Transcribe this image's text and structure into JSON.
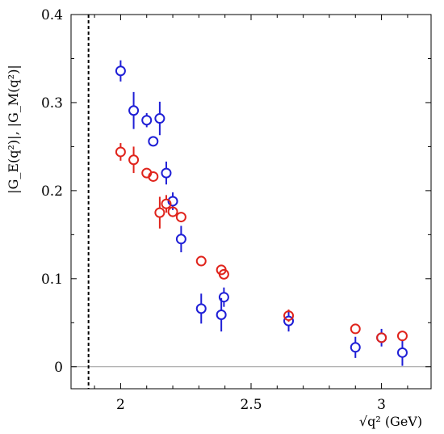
{
  "chart_data": {
    "type": "scatter",
    "title": "",
    "xlabel": "√q² (GeV)",
    "ylabel": "|G_E(q²)|, |G_M(q²)|",
    "xlim": [
      1.81,
      3.19
    ],
    "ylim": [
      -0.025,
      0.4
    ],
    "x_ticks": [
      "2",
      "2.5",
      "3"
    ],
    "y_ticks": [
      "0",
      "0.1",
      "0.2",
      "0.3",
      "0.4"
    ],
    "threshold_x": 1.877,
    "zero_line": 0,
    "legend": "none",
    "grid": false,
    "series": [
      {
        "color": "#1f1fd6",
        "points": [
          {
            "x": 2.0,
            "y": 0.336,
            "err": 0.012
          },
          {
            "x": 2.05,
            "y": 0.291,
            "err": 0.021
          },
          {
            "x": 2.1,
            "y": 0.28,
            "err": 0.008
          },
          {
            "x": 2.125,
            "y": 0.256,
            "err": 0.005
          },
          {
            "x": 2.15,
            "y": 0.282,
            "err": 0.019
          },
          {
            "x": 2.175,
            "y": 0.22,
            "err": 0.013
          },
          {
            "x": 2.2,
            "y": 0.188,
            "err": 0.01
          },
          {
            "x": 2.232,
            "y": 0.145,
            "err": 0.015
          },
          {
            "x": 2.309,
            "y": 0.066,
            "err": 0.017
          },
          {
            "x": 2.386,
            "y": 0.059,
            "err": 0.019
          },
          {
            "x": 2.396,
            "y": 0.079,
            "err": 0.011
          },
          {
            "x": 2.644,
            "y": 0.052,
            "err": 0.012
          },
          {
            "x": 2.9,
            "y": 0.022,
            "err": 0.012
          },
          {
            "x": 3.0,
            "y": 0.033,
            "err": 0.01
          },
          {
            "x": 3.08,
            "y": 0.016,
            "err": 0.015
          }
        ]
      },
      {
        "color": "#e0241c",
        "points": [
          {
            "x": 2.0,
            "y": 0.244,
            "err": 0.01
          },
          {
            "x": 2.05,
            "y": 0.235,
            "err": 0.015
          },
          {
            "x": 2.1,
            "y": 0.22,
            "err": 0.005
          },
          {
            "x": 2.125,
            "y": 0.216,
            "err": 0.004
          },
          {
            "x": 2.15,
            "y": 0.175,
            "err": 0.018
          },
          {
            "x": 2.175,
            "y": 0.185,
            "err": 0.01
          },
          {
            "x": 2.2,
            "y": 0.176,
            "err": 0.006
          },
          {
            "x": 2.232,
            "y": 0.17,
            "err": 0.004
          },
          {
            "x": 2.309,
            "y": 0.12,
            "err": 0.003
          },
          {
            "x": 2.386,
            "y": 0.11,
            "err": 0.003
          },
          {
            "x": 2.396,
            "y": 0.105,
            "err": 0.003
          },
          {
            "x": 2.644,
            "y": 0.058,
            "err": 0.007
          },
          {
            "x": 2.9,
            "y": 0.043,
            "err": 0.004
          },
          {
            "x": 3.0,
            "y": 0.033,
            "err": 0.004
          },
          {
            "x": 3.08,
            "y": 0.035,
            "err": 0.004
          }
        ]
      }
    ]
  }
}
